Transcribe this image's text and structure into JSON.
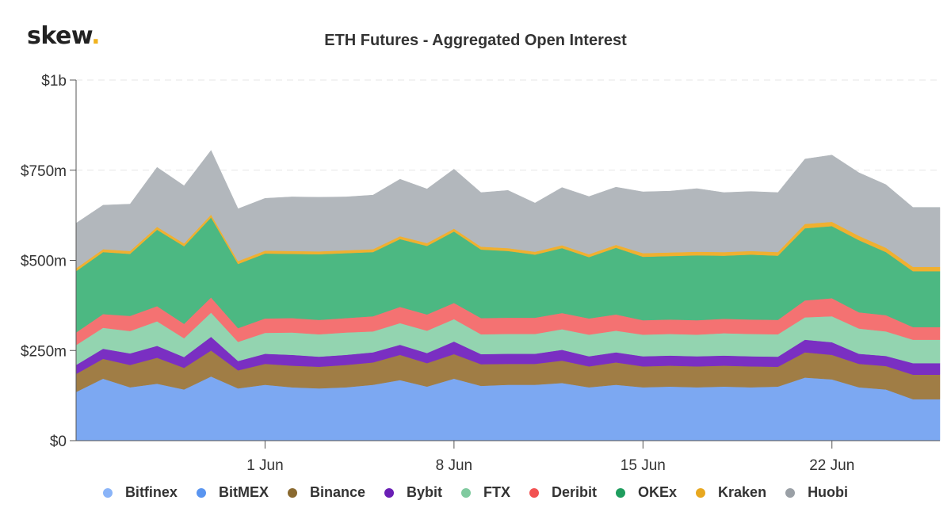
{
  "branding": {
    "logo_text": "skew",
    "logo_dot": "."
  },
  "chart_data": {
    "type": "area",
    "stacked": true,
    "title": "ETH Futures - Aggregated Open Interest",
    "xlabel": "",
    "ylabel": "",
    "ylim": [
      0,
      1000
    ],
    "y_unit": "$m",
    "y_ticks": [
      {
        "value": 0,
        "label": "$0"
      },
      {
        "value": 250,
        "label": "$250m"
      },
      {
        "value": 500,
        "label": "$500m"
      },
      {
        "value": 750,
        "label": "$750m"
      },
      {
        "value": 1000,
        "label": "$1b"
      }
    ],
    "x": [
      "May 25",
      "May 26",
      "May 27",
      "May 28",
      "May 29",
      "May 30",
      "May 31",
      "Jun 1",
      "Jun 2",
      "Jun 3",
      "Jun 4",
      "Jun 5",
      "Jun 6",
      "Jun 7",
      "Jun 8",
      "Jun 9",
      "Jun 10",
      "Jun 11",
      "Jun 12",
      "Jun 13",
      "Jun 14",
      "Jun 15",
      "Jun 16",
      "Jun 17",
      "Jun 18",
      "Jun 19",
      "Jun 20",
      "Jun 21",
      "Jun 22",
      "Jun 23",
      "Jun 24",
      "Jun 25",
      "Jun 26"
    ],
    "x_ticks": [
      {
        "x": "Jun 1",
        "label": "1 Jun"
      },
      {
        "x": "Jun 8",
        "label": "8 Jun"
      },
      {
        "x": "Jun 15",
        "label": "15 Jun"
      },
      {
        "x": "Jun 22",
        "label": "22 Jun"
      }
    ],
    "grid": true,
    "legend_position": "bottom",
    "series": [
      {
        "name": "Bitfinex",
        "color": "#7ca8f2",
        "values": [
          0,
          0,
          0,
          0,
          0,
          0,
          0,
          0,
          0,
          0,
          0,
          0,
          0,
          0,
          0,
          0,
          0,
          0,
          0,
          0,
          0,
          0,
          0,
          0,
          0,
          0,
          0,
          0,
          0,
          0,
          0,
          0,
          0
        ]
      },
      {
        "name": "BitMEX",
        "color": "#7ca8f2",
        "values": [
          135,
          172,
          148,
          158,
          142,
          178,
          145,
          155,
          148,
          145,
          148,
          155,
          168,
          150,
          172,
          152,
          155,
          155,
          160,
          148,
          155,
          148,
          150,
          148,
          150,
          148,
          150,
          175,
          170,
          148,
          142,
          115,
          115
        ]
      },
      {
        "name": "Binance",
        "color": "#a07d45",
        "values": [
          50,
          55,
          62,
          72,
          60,
          72,
          50,
          58,
          60,
          60,
          62,
          62,
          70,
          65,
          68,
          60,
          58,
          58,
          62,
          58,
          62,
          58,
          58,
          58,
          58,
          58,
          55,
          70,
          68,
          65,
          65,
          68,
          68
        ]
      },
      {
        "name": "Bybit",
        "color": "#7a2fc2",
        "values": [
          25,
          28,
          32,
          33,
          30,
          38,
          26,
          28,
          30,
          28,
          28,
          28,
          28,
          28,
          35,
          28,
          28,
          28,
          30,
          28,
          28,
          28,
          28,
          28,
          28,
          28,
          28,
          35,
          35,
          28,
          28,
          32,
          32
        ]
      },
      {
        "name": "FTX",
        "color": "#93d4b0",
        "values": [
          55,
          58,
          62,
          68,
          52,
          67,
          53,
          58,
          62,
          62,
          62,
          58,
          60,
          62,
          62,
          55,
          55,
          55,
          57,
          60,
          60,
          60,
          60,
          60,
          62,
          62,
          62,
          62,
          72,
          70,
          68,
          65,
          65
        ]
      },
      {
        "name": "Deribit",
        "color": "#f47272",
        "values": [
          35,
          38,
          42,
          42,
          40,
          42,
          38,
          40,
          40,
          40,
          40,
          42,
          45,
          45,
          45,
          45,
          45,
          45,
          45,
          45,
          45,
          40,
          40,
          40,
          40,
          40,
          40,
          47,
          50,
          45,
          45,
          35,
          35
        ]
      },
      {
        "name": "OKEx",
        "color": "#4cb882",
        "values": [
          170,
          172,
          172,
          212,
          215,
          222,
          178,
          180,
          178,
          182,
          180,
          178,
          188,
          190,
          198,
          190,
          185,
          175,
          180,
          170,
          185,
          176,
          176,
          180,
          175,
          180,
          178,
          200,
          200,
          200,
          175,
          155,
          155
        ]
      },
      {
        "name": "Kraken",
        "color": "#f0b030",
        "values": [
          8,
          8,
          8,
          8,
          8,
          8,
          8,
          8,
          8,
          8,
          8,
          8,
          8,
          8,
          8,
          8,
          8,
          8,
          8,
          8,
          8,
          10,
          10,
          10,
          10,
          10,
          10,
          12,
          12,
          12,
          12,
          12,
          12
        ]
      },
      {
        "name": "Huobi",
        "color": "#b2b7bc",
        "values": [
          125,
          122,
          130,
          165,
          160,
          178,
          145,
          145,
          150,
          150,
          148,
          150,
          158,
          150,
          165,
          150,
          160,
          135,
          160,
          160,
          160,
          170,
          170,
          175,
          165,
          165,
          165,
          180,
          185,
          175,
          175,
          165,
          165
        ]
      }
    ]
  },
  "legend": [
    {
      "label": "Bitfinex",
      "color": "#8ab4f8"
    },
    {
      "label": "BitMEX",
      "color": "#5a95f0"
    },
    {
      "label": "Binance",
      "color": "#8a6a30"
    },
    {
      "label": "Bybit",
      "color": "#6a1fb5"
    },
    {
      "label": "FTX",
      "color": "#80ca9f"
    },
    {
      "label": "Deribit",
      "color": "#f25252"
    },
    {
      "label": "OKEx",
      "color": "#1f9d5e"
    },
    {
      "label": "Kraken",
      "color": "#e8a820"
    },
    {
      "label": "Huobi",
      "color": "#9aa0a6"
    }
  ]
}
